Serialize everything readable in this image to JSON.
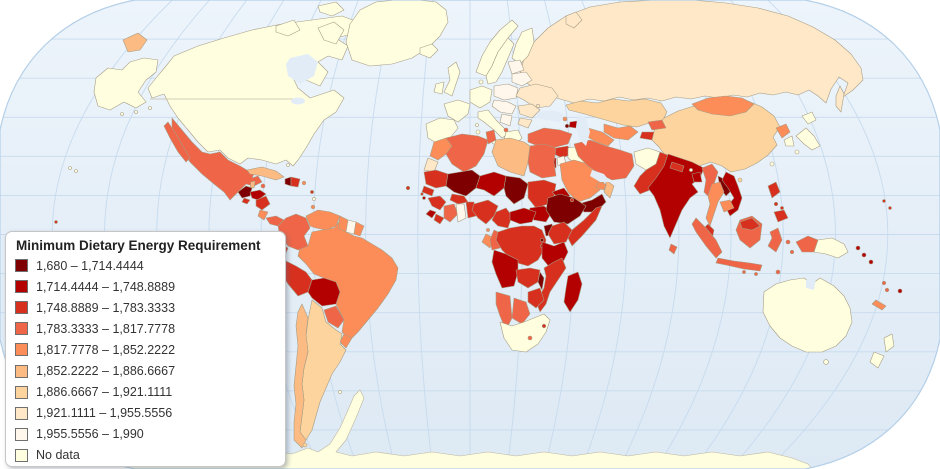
{
  "legend": {
    "title": "Minimum Dietary Energy Requirement",
    "items": [
      {
        "label": "1,680 – 1,714.4444",
        "color": "#7f0000"
      },
      {
        "label": "1,714.4444 – 1,748.8889",
        "color": "#b30000"
      },
      {
        "label": "1,748.8889 – 1,783.3333",
        "color": "#d7301f"
      },
      {
        "label": "1,783.3333 – 1,817.7778",
        "color": "#ef6548"
      },
      {
        "label": "1,817.7778 – 1,852.2222",
        "color": "#fc8d59"
      },
      {
        "label": "1,852.2222 – 1,886.6667",
        "color": "#fdbb84"
      },
      {
        "label": "1,886.6667 – 1,921.1111",
        "color": "#fdd49e"
      },
      {
        "label": "1,921.1111 – 1,955.5556",
        "color": "#fee8c8"
      },
      {
        "label": "1,955.5556 – 1,990",
        "color": "#fff7ec"
      },
      {
        "label": "No data",
        "color": "#ffffe0"
      }
    ]
  },
  "map": {
    "ocean_top": "#edf4fb",
    "ocean_bottom": "#dde9f4",
    "water": "#e2ecf7",
    "graticule_color": "#c7dbee",
    "outline_color": "#b3cfe8",
    "land_border_color": "#a79d85",
    "regions": {
      "chukotka": 5,
      "russia": 7,
      "sakhalin": 7,
      "novaya-zemlya": 7,
      "kazakhstan": 6,
      "uzbekistan": 4,
      "turkmenistan": 4,
      "kyrgyzstan": 3,
      "tajikistan": 2,
      "georgia": 4,
      "armenia": 0,
      "azerbaijan": 1,
      "ukraine": 7,
      "belarus": 8,
      "baltics": 8,
      "poland": 8,
      "czech-slovakia-hungary": 8,
      "romania": 7,
      "bulgaria": 7,
      "balkans": 8,
      "albania": 3,
      "moldova": 7,
      "turkey": 3,
      "cyprus": 4,
      "syria": 2,
      "israel": 1,
      "jordan": 8,
      "saudi-arabia": 4,
      "yemen": 0,
      "oman": 5,
      "uae": 4,
      "iran": 3,
      "pakistan": 2,
      "india": 1,
      "nepal": 2,
      "bangladesh": 1,
      "sri-lanka": 3,
      "myanmar": 3,
      "thailand": 4,
      "laos": 0,
      "vietnam": 1,
      "cambodia": 4,
      "malaysia": 2,
      "malaysia-borneo": 2,
      "indonesia": 3,
      "west-papua": 3,
      "philippines": 2,
      "timor": 3,
      "china": 6,
      "mongolia": 4,
      "north-korea": 4,
      "hainan": 6,
      "mexico": 3,
      "baja-california": 3,
      "guatemala": 0,
      "belize": 5,
      "honduras": 1,
      "el-salvador": 2,
      "nicaragua": 2,
      "costa-rica": 4,
      "panama": 3,
      "cuba": 5,
      "jamaica": 3,
      "haiti": 0,
      "dominican-republic": 2,
      "puerto-rico": 4,
      "lesser-antilles": 2,
      "trinidad": 4,
      "cape-verde": 2,
      "kiribati": 2,
      "colombia": 3,
      "venezuela": 4,
      "guyana": 4,
      "suriname": 8,
      "french-guiana": 4,
      "ecuador": 2,
      "peru": 2,
      "bolivia": 1,
      "brazil": 4,
      "paraguay": 3,
      "uruguay": 4,
      "argentina": 6,
      "chile": 5,
      "tierra-del-fuego": 6,
      "morocco": 4,
      "western-sahara": 7,
      "algeria": 3,
      "tunisia": 3,
      "libya": 5,
      "egypt": 3,
      "mauritania": 2,
      "mali": 0,
      "niger": 1,
      "chad": 0,
      "sudan": 2,
      "south-sudan": 1,
      "eritrea": 1,
      "ethiopia": 0,
      "djibouti": 2,
      "somalia": 2,
      "senegal": 2,
      "gambia": 2,
      "guinea-bissau": 1,
      "guinea": 2,
      "sierra-leone": 1,
      "liberia": 2,
      "ivory-coast": 3,
      "ghana": 8,
      "togo-benin": 2,
      "burkina-faso": 2,
      "nigeria": 2,
      "cameroon": 2,
      "central-african-republic": 1,
      "equatorial-guinea": 4,
      "gabon": 4,
      "congo": 3,
      "drc": 2,
      "uganda": 0,
      "kenya": 2,
      "rwanda": 0,
      "burundi": 1,
      "tanzania": 1,
      "malawi": 0,
      "zambia": 2,
      "angola": 1,
      "mozambique": 2,
      "zimbabwe": 2,
      "namibia": 3,
      "botswana": 3,
      "lesotho": 3,
      "swaziland": 2,
      "madagascar": 1,
      "solomon-islands": 1,
      "vanuatu": 3,
      "fiji": 1,
      "new-caledonia": 4,
      "micronesia": 2
    }
  }
}
